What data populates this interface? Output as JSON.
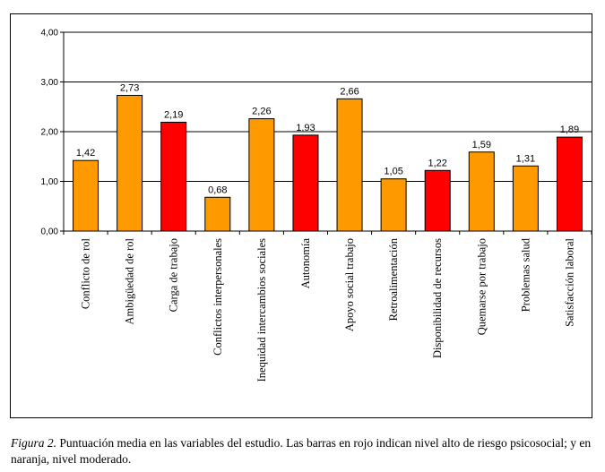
{
  "chart_data": {
    "type": "bar",
    "title": "",
    "xlabel": "",
    "ylabel": "",
    "ylim": [
      0,
      4
    ],
    "yticks": [
      "0,00",
      "1,00",
      "2,00",
      "3,00",
      "4,00"
    ],
    "grid": true,
    "categories": [
      "Conflicto de rol",
      "Ambigüedad de rol",
      "Carga de trabajo",
      "Conflictos interpersonales",
      "Inequidad intercambios sociales",
      "Autonomía",
      "Apoyo social trabajo",
      "Retroalimentación",
      "Disponibilidad de recursos",
      "Quemarse por trabajo",
      "Problemas salud",
      "Satisfacción laboral"
    ],
    "values": [
      1.42,
      2.73,
      2.19,
      0.68,
      2.26,
      1.93,
      2.66,
      1.05,
      1.22,
      1.59,
      1.31,
      1.89
    ],
    "value_labels": [
      "1,42",
      "2,73",
      "2,19",
      "0,68",
      "2,26",
      "1,93",
      "2,66",
      "1,05",
      "1,22",
      "1,59",
      "1,31",
      "1,89"
    ],
    "risk_levels": [
      "moderado",
      "moderado",
      "alto",
      "moderado",
      "moderado",
      "alto",
      "moderado",
      "moderado",
      "alto",
      "moderado",
      "moderado",
      "alto"
    ],
    "colors": {
      "alto": "#ff0000",
      "moderado": "#ff9900"
    }
  },
  "caption": {
    "figure_label": "Figura 2.",
    "text": " Puntuación media en las variables del estudio. Las barras en rojo indican nivel alto de riesgo psicosocial; y en naranja, nivel moderado."
  }
}
